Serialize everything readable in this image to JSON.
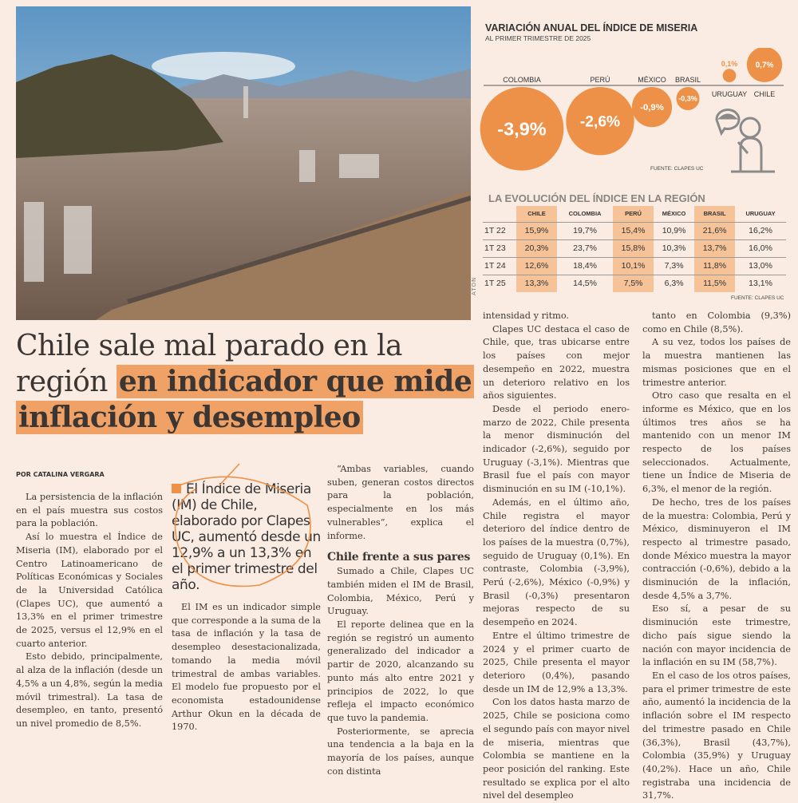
{
  "photo": {
    "credit": "ATON"
  },
  "graphic1": {
    "title": "VARIACIÓN ANUAL DEL ÍNDICE DE MISERIA",
    "subtitle": "AL PRIMER TRIMESTRE DE 2025",
    "source": "FUENTE: CLAPES UC",
    "accent": "#ee9148",
    "items": [
      {
        "country": "COLOMBIA",
        "value": -3.9,
        "label": "-3,9%"
      },
      {
        "country": "PERÚ",
        "value": -2.6,
        "label": "-2,6%"
      },
      {
        "country": "MÉXICO",
        "value": -0.9,
        "label": "-0,9%"
      },
      {
        "country": "BRASIL",
        "value": -0.3,
        "label": "-0,3%"
      },
      {
        "country": "URUGUAY",
        "value": 0.1,
        "label": "0,1%"
      },
      {
        "country": "CHILE",
        "value": 0.7,
        "label": "0,7%"
      }
    ],
    "icon": "person-with-bread-speech-bubble-icon"
  },
  "graphic2": {
    "title": "LA EVOLUCIÓN DEL ÍNDICE EN LA REGIÓN",
    "source": "FUENTE: CLAPES UC",
    "headers": [
      "",
      "CHILE",
      "COLOMBIA",
      "PERÚ",
      "MÉXICO",
      "BRASIL",
      "URUGUAY"
    ],
    "rows": [
      [
        "1T 22",
        "15,9%",
        "19,7%",
        "15,4%",
        "10,9%",
        "21,6%",
        "16,2%"
      ],
      [
        "1T 23",
        "20,3%",
        "23,7%",
        "15,8%",
        "10,3%",
        "13,7%",
        "16,0%"
      ],
      [
        "1T 24",
        "12,6%",
        "18,4%",
        "10,1%",
        "7,3%",
        "11,8%",
        "13,0%"
      ],
      [
        "1T 25",
        "13,3%",
        "14,5%",
        "7,5%",
        "6,3%",
        "11,5%",
        "13,1%"
      ]
    ]
  },
  "headline": {
    "light": "Chile sale mal parado en la región ",
    "bold": "en indicador que mide inflación y desempleo"
  },
  "byline": "POR CATALINA VERGARA",
  "pullquote": "El Índice de Miseria (IM) de Chile, elaborado por Clapes UC, aumentó desde un 12,9% a un 13,3% en el primer trimestre del año.",
  "col1": [
    "La persistencia de la inflación en el país muestra sus costos para la población.",
    "Así lo muestra el Índice de Miseria (IM), elaborado por el Centro Latinoamericano de Políticas Económicas y Sociales de la Universidad Católica (Clapes UC), que aumentó a 13,3% en el primer trimestre de 2025, versus el 12,9% en el cuarto anterior.",
    "Esto debido, principalmente, al alza de la inflación (desde un 4,5% a un 4,8%, según la media móvil trimestral). La tasa de desempleo, en tanto, presentó un nivel promedio de 8,5%."
  ],
  "col2": [
    "El IM es un indicador simple que corresponde a la suma de la tasa de inflación y la tasa de desempleo desestacionalizada, tomando la media móvil trimestral de ambas variables. El modelo fue propuesto por el economista estadounidense Arthur Okun en la década de 1970."
  ],
  "col3": {
    "p1": "“Ambas variables, cuando suben, generan costos directos para la población, especialmente en los más vulnerables”, explica el informe.",
    "subhead": "Chile frente a sus pares",
    "rest": [
      "Sumado a Chile, Clapes UC también miden el IM de Brasil, Colombia, México, Perú y Uruguay.",
      "El reporte delinea que en la región se registró un aumento generalizado del indicador a partir de 2020, alcanzando su punto más alto entre 2021 y principios de 2022, lo que refleja el impacto económico que tuvo la pandemia.",
      "Posteriormente, se aprecia una tendencia a la baja en la mayoría de los países, aunque con distinta"
    ]
  },
  "col4": [
    "intensidad y ritmo.",
    "Clapes UC destaca el caso de Chile, que, tras ubicarse entre los países con mejor desempeño en 2022, muestra un deterioro relativo en los años siguientes.",
    "Desde el periodo enero-marzo de 2022, Chile presenta la menor disminución del indicador (-2,6%), seguido por Uruguay (-3,1%). Mientras que Brasil fue el país con mayor disminución en su IM (-10,1%).",
    "Además, en el último año, Chile registra el mayor deterioro del índice dentro de los países de la muestra (0,7%), seguido de Uruguay (0,1%). En contraste, Colombia (-3,9%), Perú (-2,6%), México (-0,9%) y Brasil (-0,3%) presentaron mejoras respecto de su desempeño en 2024.",
    "Entre el último trimestre de 2024 y el primer cuarto de 2025, Chile presenta el mayor deterioro (0,4%), pasando desde un IM de 12,9% a 13,3%.",
    "Con los datos hasta marzo de 2025, Chile se posiciona como el segundo país con mayor nivel de miseria, mientras que Colombia se mantiene en la peor posición del ranking. Este resultado se explica por el alto nivel del desempleo"
  ],
  "col5": [
    "tanto en Colombia (9,3%) como en Chile (8,5%).",
    "A su vez, todos los países de la muestra mantienen las mismas posiciones que en el trimestre anterior.",
    "Otro caso que resalta en el informe es México, que en los últimos tres años se ha mantenido con un menor IM respecto de los países seleccionados. Actualmente, tiene un Índice de Miseria de 6,3%, el menor de la región.",
    "De hecho, tres de los países de la muestra: Colombia, Perú y México, disminuyeron el IM respecto al trimestre pasado, donde México muestra la mayor contracción (-0,6%), debido a la disminución de la inflación, desde 4,5% a 3,7%.",
    "Eso sí, a pesar de su disminución este trimestre, dicho país sigue siendo la nación con mayor incidencia de la inflación en su IM (58,7%).",
    "En el caso de los otros países, para el primer trimestre de este año, aumentó la incidencia de la inflación sobre el IM respecto del trimestre pasado en Chile (36,3%), Brasil (43,7%), Colombia (35,9%) y Uruguay (40,2%). Hace un año, Chile registraba una incidencia de 31,7%."
  ]
}
